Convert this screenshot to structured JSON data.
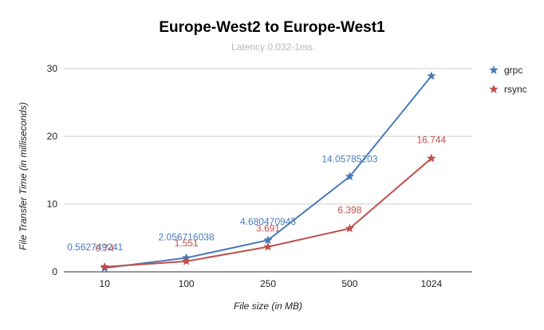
{
  "chart_data": {
    "type": "line",
    "title": "Europe-West2  to  Europe-West1",
    "subtitle": "Latency 0.032-1ms",
    "xlabel": "File size (in MB)",
    "ylabel": "File Transfer Time (in milliseconds)",
    "categories": [
      "10",
      "100",
      "250",
      "500",
      "1024"
    ],
    "ylim": [
      0,
      30
    ],
    "yticks": [
      "0",
      "10",
      "20",
      "30"
    ],
    "grid": true,
    "legend_position": "right",
    "marker": "star",
    "series": [
      {
        "name": "grpc",
        "color": "#4a7ab8",
        "values": [
          0.562749241,
          2.056716038,
          4.680470943,
          14.05785203,
          28.9
        ],
        "labels": [
          "0.562749241",
          "2.056716038",
          "4.680470943",
          "14.05785203",
          ""
        ]
      },
      {
        "name": "rsync",
        "color": "#c0504d",
        "values": [
          0.74,
          1.551,
          3.691,
          6.398,
          16.744
        ],
        "labels": [
          "0.74",
          "1.551",
          "3.691",
          "6.398",
          "16.744"
        ]
      }
    ]
  }
}
